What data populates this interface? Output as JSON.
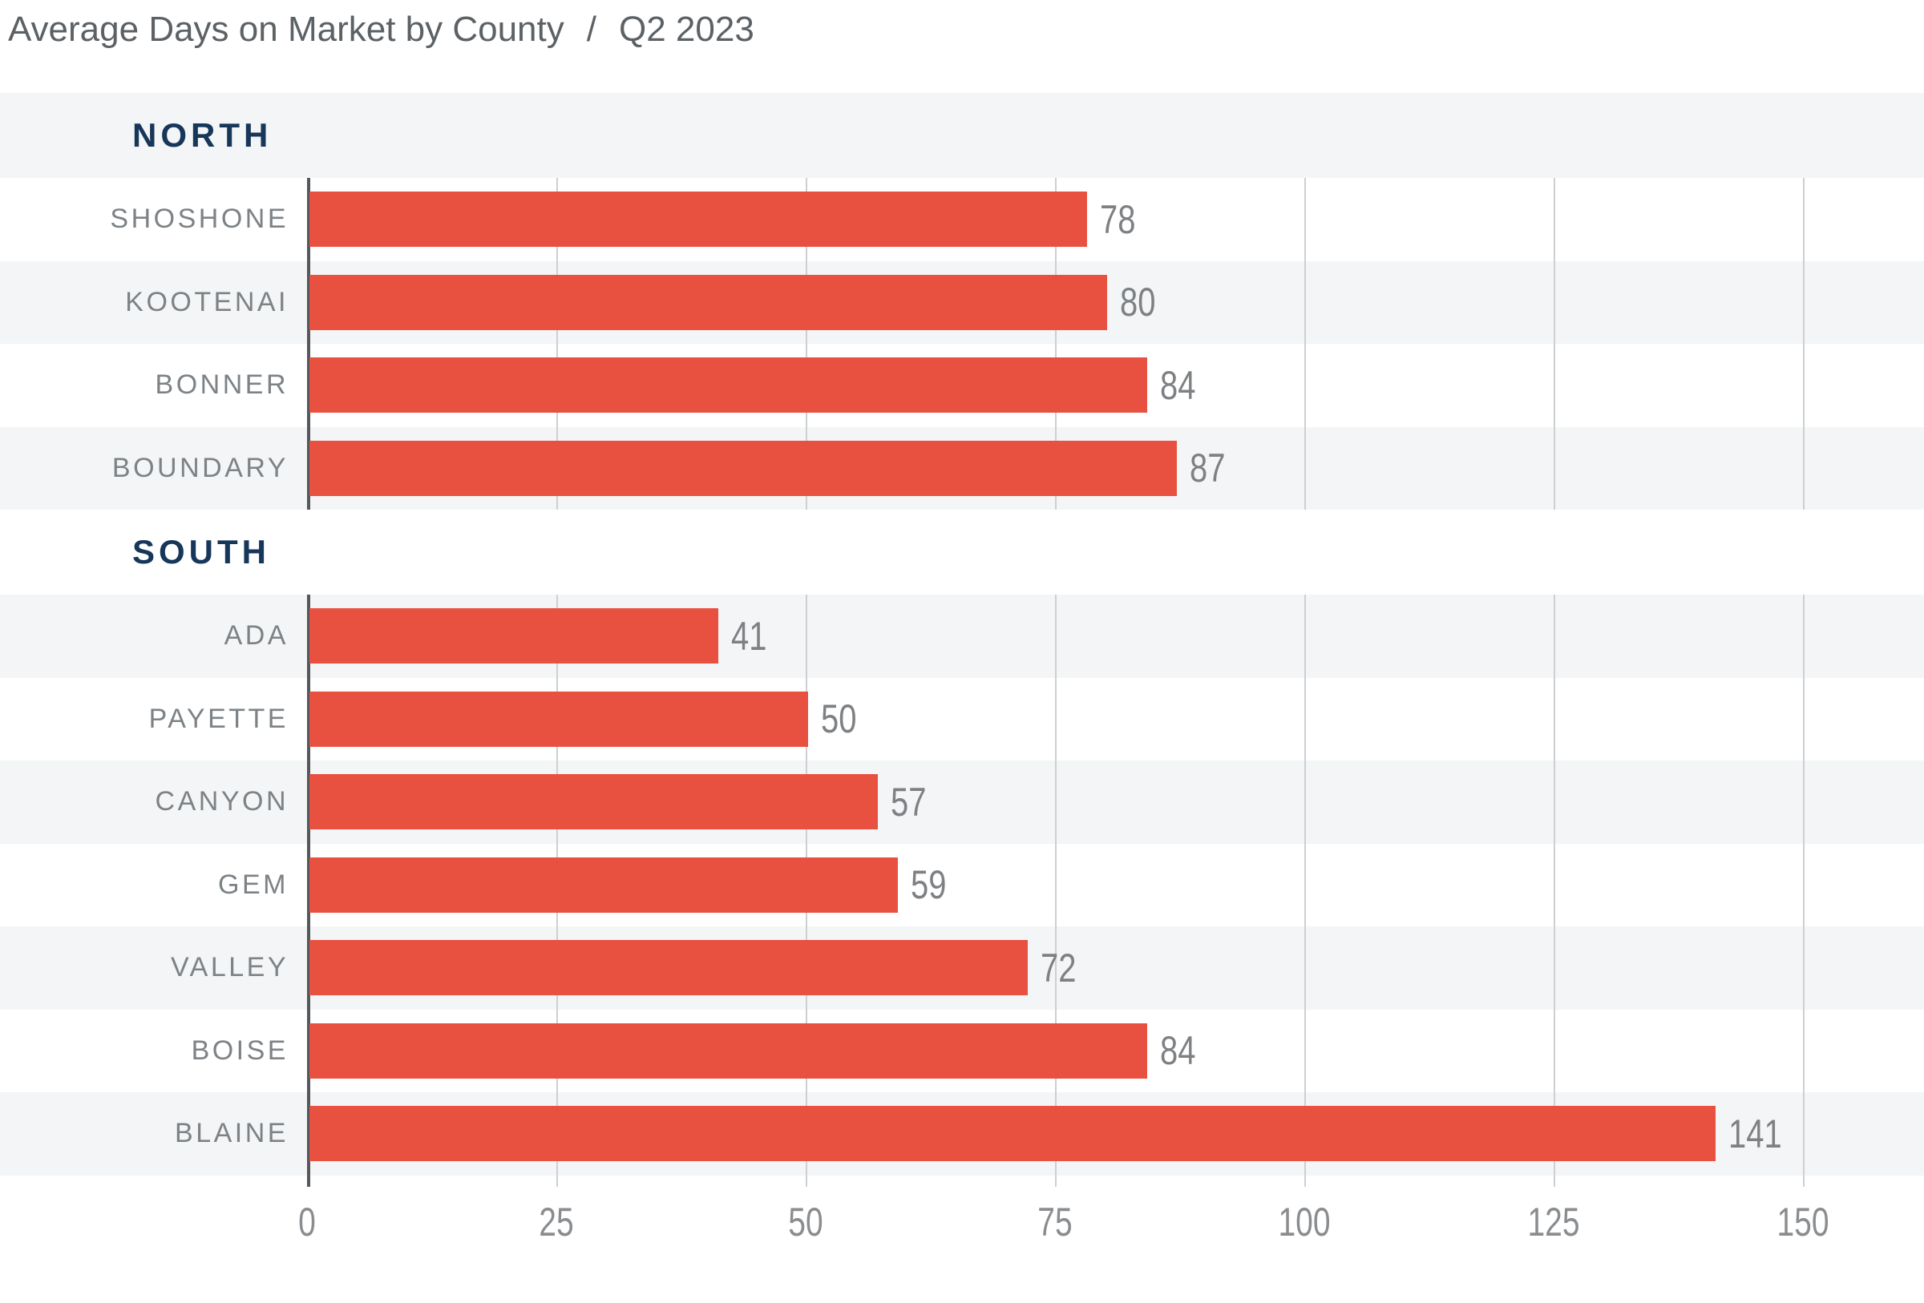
{
  "header": {
    "title": "Average Days on Market by County",
    "separator": "/",
    "period": "Q2 2023"
  },
  "colors": {
    "bar": "#e85140",
    "stripe": "#f4f5f6",
    "grid": "#cdd0d1",
    "axis": "#54585c",
    "county_label": "#7c8286",
    "value_label": "#7e8184",
    "group_label": "#16365a",
    "title": "#5c6165",
    "tick_label": "#8a8d90",
    "background": "#ffffff"
  },
  "chart_data": {
    "type": "bar",
    "orientation": "horizontal",
    "title": "Average Days on Market by County",
    "subtitle": "Q2 2023",
    "xlabel": "",
    "ylabel": "",
    "xlim": [
      0,
      162
    ],
    "xticks": [
      0,
      25,
      50,
      75,
      100,
      125,
      150
    ],
    "grid": "vertical",
    "legend": "none",
    "groups": [
      {
        "label": "NORTH",
        "categories": [
          "SHOSHONE",
          "KOOTENAI",
          "BONNER",
          "BOUNDARY"
        ],
        "values": [
          78,
          80,
          84,
          87
        ]
      },
      {
        "label": "SOUTH",
        "categories": [
          "ADA",
          "PAYETTE",
          "CANYON",
          "GEM",
          "VALLEY",
          "BOISE",
          "BLAINE"
        ],
        "values": [
          41,
          50,
          57,
          59,
          72,
          84,
          141
        ]
      }
    ]
  }
}
